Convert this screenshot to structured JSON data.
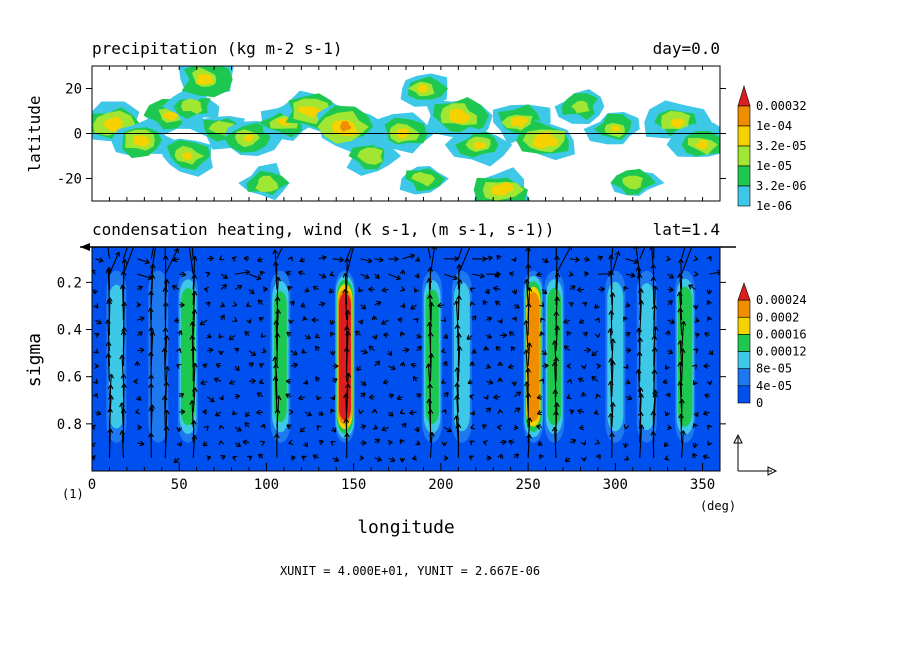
{
  "chart_data": [
    {
      "type": "heatmap",
      "title": "precipitation (kg m-2 s-1)",
      "title_right": "day=0.0",
      "ylabel": "latitude",
      "xlim": [
        0,
        360
      ],
      "ylim": [
        -30,
        30
      ],
      "yticks": [
        {
          "v": 20,
          "label": "20"
        },
        {
          "v": 0,
          "label": "0"
        },
        {
          "v": -20,
          "label": "-20"
        }
      ],
      "levels": [
        "1e-06",
        "3.2e-06",
        "1e-05",
        "3.2e-05",
        "1e-04",
        "0.00032"
      ],
      "colors": [
        "#ffffff",
        "#3cc8e6",
        "#1ec850",
        "#a0e632",
        "#f5d200",
        "#f08c00",
        "#dc1e1e"
      ],
      "centers": [
        {
          "lon": 12,
          "lat": 4,
          "i": 4.3
        },
        {
          "lon": 28,
          "lat": -3,
          "i": 4.0
        },
        {
          "lon": 45,
          "lat": 8,
          "i": 3.8
        },
        {
          "lon": 58,
          "lat": 12,
          "i": 3.2
        },
        {
          "lon": 55,
          "lat": -10,
          "i": 3.6
        },
        {
          "lon": 65,
          "lat": 24,
          "i": 4.0
        },
        {
          "lon": 75,
          "lat": 2,
          "i": 3.4
        },
        {
          "lon": 90,
          "lat": -2,
          "i": 3.5
        },
        {
          "lon": 110,
          "lat": 5,
          "i": 3.6
        },
        {
          "lon": 125,
          "lat": 10,
          "i": 4.2
        },
        {
          "lon": 145,
          "lat": 3,
          "i": 4.8
        },
        {
          "lon": 160,
          "lat": -10,
          "i": 3.4
        },
        {
          "lon": 178,
          "lat": 0,
          "i": 3.8
        },
        {
          "lon": 190,
          "lat": 20,
          "i": 3.6
        },
        {
          "lon": 210,
          "lat": 8,
          "i": 4.3
        },
        {
          "lon": 222,
          "lat": -5,
          "i": 3.6
        },
        {
          "lon": 235,
          "lat": -25,
          "i": 4.2
        },
        {
          "lon": 245,
          "lat": 5,
          "i": 3.9
        },
        {
          "lon": 260,
          "lat": -3,
          "i": 4.4
        },
        {
          "lon": 280,
          "lat": 12,
          "i": 3.2
        },
        {
          "lon": 300,
          "lat": 2,
          "i": 3.5
        },
        {
          "lon": 310,
          "lat": -22,
          "i": 3.3
        },
        {
          "lon": 335,
          "lat": 5,
          "i": 3.9
        },
        {
          "lon": 350,
          "lat": -5,
          "i": 3.7
        },
        {
          "lon": 100,
          "lat": -22,
          "i": 3.4
        },
        {
          "lon": 190,
          "lat": -20,
          "i": 3.2
        }
      ]
    },
    {
      "type": "heatmap",
      "title": "condensation heating, wind (K s-1, (m s-1, s-1))",
      "title_right": "lat=1.4",
      "xlabel": "longitude",
      "ylabel": "sigma",
      "xlim": [
        0,
        360
      ],
      "ylim": [
        1.0,
        0.05
      ],
      "xticks": [
        "0",
        "50",
        "100",
        "150",
        "200",
        "250",
        "300",
        "350"
      ],
      "xunit": "(deg)",
      "yticks": [
        "0.2",
        "0.4",
        "0.6",
        "0.8"
      ],
      "levels": [
        "0",
        "4e-05",
        "8e-05",
        "0.00012",
        "0.00016",
        "0.0002",
        "0.00024"
      ],
      "colors": [
        "#0050f0",
        "#1e78f0",
        "#3cc8e6",
        "#1ec850",
        "#f5d200",
        "#f08c00",
        "#dc1e1e"
      ],
      "columns": [
        {
          "lon": 14,
          "peak": 8e-05
        },
        {
          "lon": 38,
          "peak": 5e-05
        },
        {
          "lon": 55,
          "peak": 0.00013
        },
        {
          "lon": 108,
          "peak": 0.00011
        },
        {
          "lon": 145,
          "peak": 0.00025
        },
        {
          "lon": 195,
          "peak": 0.00012
        },
        {
          "lon": 212,
          "peak": 0.0001
        },
        {
          "lon": 253,
          "peak": 0.00021
        },
        {
          "lon": 265,
          "peak": 0.00013
        },
        {
          "lon": 300,
          "peak": 0.0001
        },
        {
          "lon": 318,
          "peak": 9e-05
        },
        {
          "lon": 340,
          "peak": 0.00014
        }
      ],
      "vector_xunit": "XUNIT = 4.000E+01, YUNIT = 2.667E-06",
      "corner_label": "(1)"
    }
  ]
}
